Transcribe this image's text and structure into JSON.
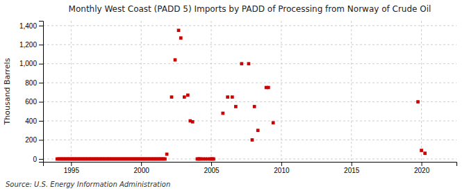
{
  "chart_data": {
    "type": "scatter",
    "title": "Monthly West Coast (PADD 5) Imports by PADD of Processing from Norway of Crude Oil",
    "ylabel": "Thousand Barrels",
    "annotations": [
      "Source: U.S. Energy Information Administration"
    ],
    "color": "#cc0000",
    "marker": "square",
    "grid": true,
    "xlim": [
      1993.0,
      2022.5
    ],
    "ylim": [
      -30,
      1450
    ],
    "xticks": [
      1995,
      2000,
      2005,
      2010,
      2015,
      2020
    ],
    "yticks": [
      0,
      200,
      400,
      600,
      800,
      {
        "value": 1000,
        "label": "1,000"
      },
      {
        "value": 1200,
        "label": "1,200"
      },
      {
        "value": 1400,
        "label": "1,400"
      }
    ],
    "x": [
      1994.0,
      1994.1,
      1994.2,
      1994.3,
      1994.4,
      1994.5,
      1994.6,
      1994.7,
      1994.8,
      1994.9,
      1995.0,
      1995.1,
      1995.2,
      1995.3,
      1995.4,
      1995.5,
      1995.6,
      1995.7,
      1995.8,
      1995.9,
      1996.0,
      1996.1,
      1996.2,
      1996.3,
      1996.4,
      1996.5,
      1996.6,
      1996.7,
      1996.8,
      1996.9,
      1997.0,
      1997.1,
      1997.2,
      1997.3,
      1997.4,
      1997.5,
      1997.6,
      1997.7,
      1997.8,
      1997.9,
      1998.0,
      1998.1,
      1998.2,
      1998.3,
      1998.4,
      1998.5,
      1998.6,
      1998.7,
      1998.8,
      1998.9,
      1999.0,
      1999.1,
      1999.2,
      1999.3,
      1999.4,
      1999.5,
      1999.6,
      1999.7,
      1999.8,
      1999.9,
      2000.0,
      2000.1,
      2000.2,
      2000.3,
      2000.4,
      2000.5,
      2000.6,
      2000.7,
      2000.8,
      2000.9,
      2001.0,
      2001.1,
      2001.2,
      2001.3,
      2001.4,
      2001.5,
      2001.6,
      2001.7,
      2001.83,
      2002.17,
      2002.42,
      2002.67,
      2002.83,
      2003.08,
      2003.33,
      2003.5,
      2003.67,
      2004.0,
      2004.08,
      2004.17,
      2004.25,
      2004.42,
      2004.58,
      2004.75,
      2004.92,
      2005.0,
      2005.08,
      2005.17,
      2005.83,
      2006.17,
      2006.5,
      2006.75,
      2007.17,
      2007.67,
      2007.92,
      2008.08,
      2008.33,
      2008.92,
      2009.08,
      2009.42,
      2019.75,
      2020.0,
      2020.25
    ],
    "values": [
      0,
      0,
      0,
      0,
      0,
      0,
      0,
      0,
      0,
      0,
      0,
      0,
      0,
      0,
      0,
      0,
      0,
      0,
      0,
      0,
      0,
      0,
      0,
      0,
      0,
      0,
      0,
      0,
      0,
      0,
      0,
      0,
      0,
      0,
      0,
      0,
      0,
      0,
      0,
      0,
      0,
      0,
      0,
      0,
      0,
      0,
      0,
      0,
      0,
      0,
      0,
      0,
      0,
      0,
      0,
      0,
      0,
      0,
      0,
      0,
      0,
      0,
      0,
      0,
      0,
      0,
      0,
      0,
      0,
      0,
      0,
      0,
      0,
      0,
      0,
      0,
      0,
      0,
      50,
      650,
      1040,
      1350,
      1270,
      650,
      670,
      400,
      390,
      0,
      0,
      0,
      0,
      0,
      0,
      0,
      0,
      0,
      0,
      0,
      480,
      650,
      650,
      550,
      1000,
      1000,
      200,
      550,
      300,
      750,
      750,
      380,
      600,
      90,
      60
    ]
  }
}
